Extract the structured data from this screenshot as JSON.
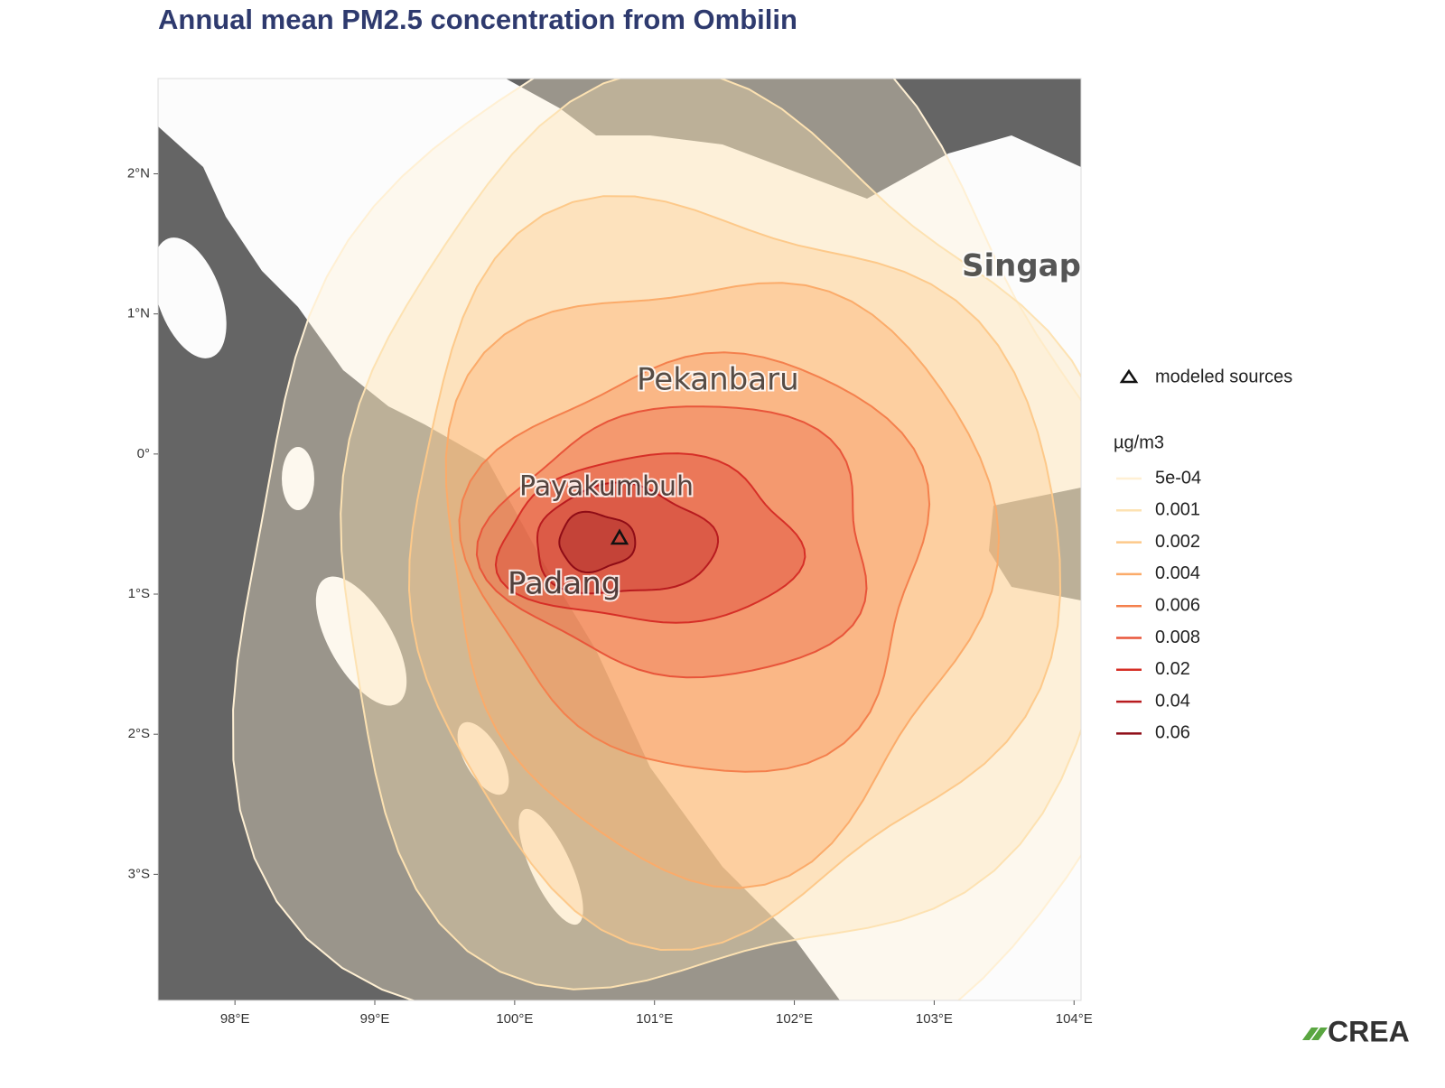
{
  "chart_data": {
    "type": "contour-map",
    "title": "Annual mean PM2.5 concentration from Ombilin",
    "xlim": [
      97.45,
      104.05
    ],
    "ylim": [
      -3.9,
      2.68
    ],
    "xticks": [
      {
        "value": 98,
        "label": "98°E"
      },
      {
        "value": 99,
        "label": "99°E"
      },
      {
        "value": 100,
        "label": "100°E"
      },
      {
        "value": 101,
        "label": "101°E"
      },
      {
        "value": 102,
        "label": "102°E"
      },
      {
        "value": 103,
        "label": "103°E"
      },
      {
        "value": 104,
        "label": "104°E"
      }
    ],
    "yticks": [
      {
        "value": 2,
        "label": "2°N"
      },
      {
        "value": 1,
        "label": "1°N"
      },
      {
        "value": 0,
        "label": "0°"
      },
      {
        "value": -1,
        "label": "1°S"
      },
      {
        "value": -2,
        "label": "2°S"
      },
      {
        "value": -3,
        "label": "3°S"
      }
    ],
    "cities": [
      "Pekanbaru",
      "Payakumbuh",
      "Padang",
      "Singapore"
    ],
    "sources": {
      "name": "modeled sources",
      "lon": [
        100.75
      ],
      "lat": [
        -0.6
      ]
    },
    "legend_title": "µg/m3",
    "levels": [
      {
        "value": 0.0005,
        "label": "5e-04",
        "color": "#fff0d4"
      },
      {
        "value": 0.001,
        "label": "0.001",
        "color": "#fde2b2"
      },
      {
        "value": 0.002,
        "label": "0.002",
        "color": "#fdc98a"
      },
      {
        "value": 0.004,
        "label": "0.004",
        "color": "#fbab6a"
      },
      {
        "value": 0.006,
        "label": "0.006",
        "color": "#f4804d"
      },
      {
        "value": 0.008,
        "label": "0.008",
        "color": "#e8553a"
      },
      {
        "value": 0.02,
        "label": "0.02",
        "color": "#d62f27"
      },
      {
        "value": 0.04,
        "label": "0.04",
        "color": "#b81b1f"
      },
      {
        "value": 0.06,
        "label": "0.06",
        "color": "#8f0c16"
      }
    ],
    "logo": "CREA"
  }
}
